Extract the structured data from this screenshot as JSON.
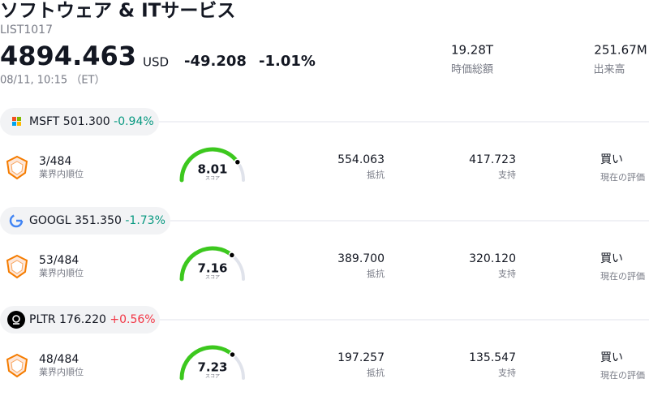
{
  "header": {
    "title": "ソフトウェア & ITサービス",
    "code": "LIST1017",
    "price": "4894.463",
    "currency": "USD",
    "change": "-49.208",
    "change_pct": "-1.01%",
    "change_color": "#089981",
    "time": "08/11, 10:15 （ET）",
    "market_cap": "19.28T",
    "market_cap_label": "時価総額",
    "volume": "251.67M",
    "volume_label": "出来高"
  },
  "gauge_lim": [
    0,
    10
  ],
  "stocks": [
    {
      "ticker": "MSFT",
      "price": "501.300",
      "change": "-0.94%",
      "change_color": "#089981",
      "rank": "3/484",
      "rank_label": "業界内順位",
      "score": 8.01,
      "score_label": "スコア",
      "resistance": "554.063",
      "resistance_label": "抵抗",
      "support": "417.723",
      "support_label": "支持",
      "rating": "買い",
      "rating_label": "現在の評価"
    },
    {
      "ticker": "GOOGL",
      "price": "351.350",
      "change": "-1.73%",
      "change_color": "#089981",
      "rank": "53/484",
      "rank_label": "業界内順位",
      "score": 7.16,
      "score_label": "スコア",
      "resistance": "389.700",
      "resistance_label": "抵抗",
      "support": "320.120",
      "support_label": "支持",
      "rating": "買い",
      "rating_label": "現在の評価"
    },
    {
      "ticker": "PLTR",
      "price": "176.220",
      "change": "+0.56%",
      "change_color": "#f23645",
      "rank": "48/484",
      "rank_label": "業界内順位",
      "score": 7.23,
      "score_label": "スコア",
      "resistance": "197.257",
      "resistance_label": "抵抗",
      "support": "135.547",
      "support_label": "支持",
      "rating": "買い",
      "rating_label": "現在の評価"
    }
  ]
}
